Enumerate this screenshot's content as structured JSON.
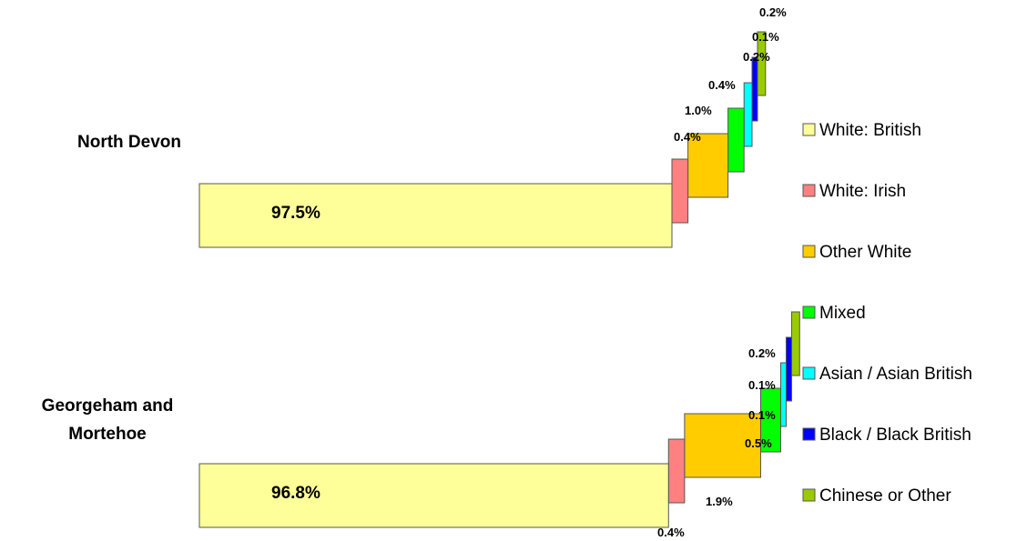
{
  "chart_data": {
    "type": "bar",
    "subtype": "stacked-3d-waterfall-horizontal",
    "categories": [
      "North Devon",
      "Georgeham and Mortehoe"
    ],
    "series": [
      {
        "name": "White: British",
        "color": "#FFFF99",
        "values": [
          97.5,
          96.8
        ],
        "labels": [
          "97.5%",
          "96.8%"
        ]
      },
      {
        "name": "White: Irish",
        "color": "#FF8080",
        "values": [
          0.4,
          0.4
        ],
        "labels": [
          "0.4%",
          "0.4%"
        ]
      },
      {
        "name": "Other White",
        "color": "#FFCC00",
        "values": [
          1.0,
          1.9
        ],
        "labels": [
          "1.0%",
          "1.9%"
        ]
      },
      {
        "name": "Mixed",
        "color": "#00FF00",
        "values": [
          0.4,
          0.5
        ],
        "labels": [
          "0.4%",
          "0.5%"
        ]
      },
      {
        "name": "Asian / Asian British",
        "color": "#00FFFF",
        "values": [
          0.2,
          0.1
        ],
        "labels": [
          "0.2%",
          "0.1%"
        ]
      },
      {
        "name": "Black / Black British",
        "color": "#0000FF",
        "values": [
          0.1,
          0.1
        ],
        "labels": [
          "0.1%",
          "0.1%"
        ]
      },
      {
        "name": "Chinese or Other",
        "color": "#99CC00",
        "values": [
          0.2,
          0.2
        ],
        "labels": [
          "0.2%",
          "0.2%"
        ]
      }
    ],
    "legend_position": "right",
    "grid": false
  }
}
